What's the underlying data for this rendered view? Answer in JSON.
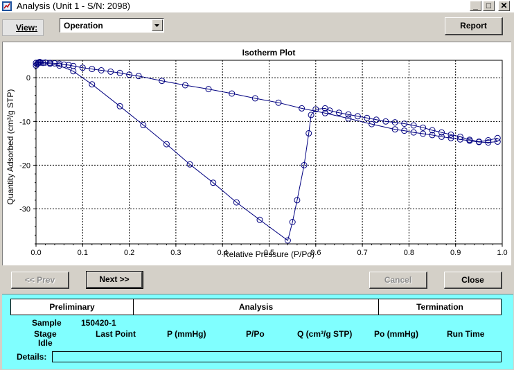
{
  "window": {
    "title": "Analysis (Unit 1 - S/N: 2098)",
    "minimize_glyph": "_",
    "maximize_glyph": "□",
    "close_glyph": "✕"
  },
  "toolbar": {
    "view_label": "View:",
    "view_value": "Operation",
    "report_label": "Report"
  },
  "nav": {
    "prev_label": "<< Prev",
    "next_label": "Next >>",
    "cancel_label": "Cancel",
    "close_label": "Close"
  },
  "status": {
    "phases": [
      "Preliminary",
      "Analysis",
      "Termination"
    ],
    "sample_label": "Sample",
    "sample_value": "150420-1",
    "stage_label": "Stage",
    "stage_value": "Idle",
    "columns": [
      "Last Point",
      "P (mmHg)",
      "P/Po",
      "Q (cm³/g STP)",
      "Po (mmHg)",
      "Run Time"
    ],
    "details_label": "Details:"
  },
  "colors": {
    "series": "#000080",
    "status_bg": "#80ffff",
    "window_bg": "#d4d0c8"
  },
  "icons": [
    "app-icon",
    "dropdown-arrow-icon"
  ],
  "chart_data": {
    "type": "line",
    "title": "Isotherm Plot",
    "xlabel": "Relative Pressure (P/Po)",
    "ylabel": "Quantity Adsorbed (cm³/g STP)",
    "xlim": [
      0.0,
      1.0
    ],
    "ylim": [
      -38,
      4
    ],
    "x_ticks": [
      "0.0",
      "0.1",
      "0.2",
      "0.3",
      "0.4",
      "0.5",
      "0.6",
      "0.7",
      "0.8",
      "0.9",
      "1.0"
    ],
    "y_ticks": [
      {
        "value": 0,
        "label": "0"
      },
      {
        "value": -10,
        "label": "-10"
      },
      {
        "value": -20,
        "label": "-20"
      },
      {
        "value": -30,
        "label": "-30"
      }
    ],
    "grid": true,
    "series": [
      {
        "x": [
          0.0,
          0.002,
          0.004,
          0.006,
          0.008,
          0.01,
          0.02,
          0.03,
          0.04,
          0.05,
          0.06,
          0.07,
          0.08,
          0.1,
          0.12,
          0.14,
          0.16,
          0.18,
          0.2,
          0.22,
          0.27,
          0.32,
          0.37,
          0.42,
          0.47,
          0.52,
          0.57,
          0.62,
          0.67,
          0.72,
          0.77,
          0.79,
          0.81,
          0.83,
          0.85,
          0.87,
          0.89,
          0.91,
          0.93,
          0.95,
          0.97,
          0.99
        ],
        "y": [
          2.8,
          3.1,
          3.3,
          3.5,
          3.6,
          3.5,
          3.5,
          3.4,
          3.3,
          3.2,
          3.0,
          2.9,
          2.7,
          2.3,
          2.0,
          1.7,
          1.4,
          1.1,
          0.7,
          0.4,
          -0.7,
          -1.7,
          -2.6,
          -3.6,
          -4.7,
          -5.7,
          -7.0,
          -8.1,
          -9.3,
          -10.6,
          -11.8,
          -12.1,
          -12.5,
          -12.8,
          -13.1,
          -13.5,
          -13.8,
          -14.1,
          -14.4,
          -14.7,
          -14.8,
          -14.6
        ]
      },
      {
        "x": [
          0.99,
          0.97,
          0.95,
          0.93,
          0.91,
          0.89,
          0.87,
          0.85,
          0.83,
          0.81,
          0.79,
          0.77,
          0.75,
          0.73,
          0.71,
          0.69,
          0.67,
          0.65,
          0.63,
          0.62,
          0.6,
          0.59,
          0.585,
          0.575,
          0.56,
          0.55,
          0.54,
          0.48,
          0.43,
          0.38,
          0.33,
          0.28,
          0.23,
          0.18,
          0.12,
          0.08,
          0.05,
          0.03,
          0.015,
          0.005,
          0.0
        ],
        "y": [
          -13.8,
          -14.3,
          -14.6,
          -14.2,
          -13.5,
          -13.0,
          -12.5,
          -12.0,
          -11.4,
          -10.9,
          -10.5,
          -10.2,
          -10.0,
          -9.6,
          -9.2,
          -8.8,
          -8.4,
          -8.0,
          -7.5,
          -7.0,
          -7.2,
          -8.5,
          -12.7,
          -20.0,
          -28.0,
          -33.0,
          -37.2,
          -32.5,
          -28.5,
          -24.0,
          -19.8,
          -15.2,
          -10.8,
          -6.5,
          -1.5,
          1.5,
          2.8,
          3.2,
          3.4,
          3.5,
          3.4
        ]
      }
    ]
  }
}
